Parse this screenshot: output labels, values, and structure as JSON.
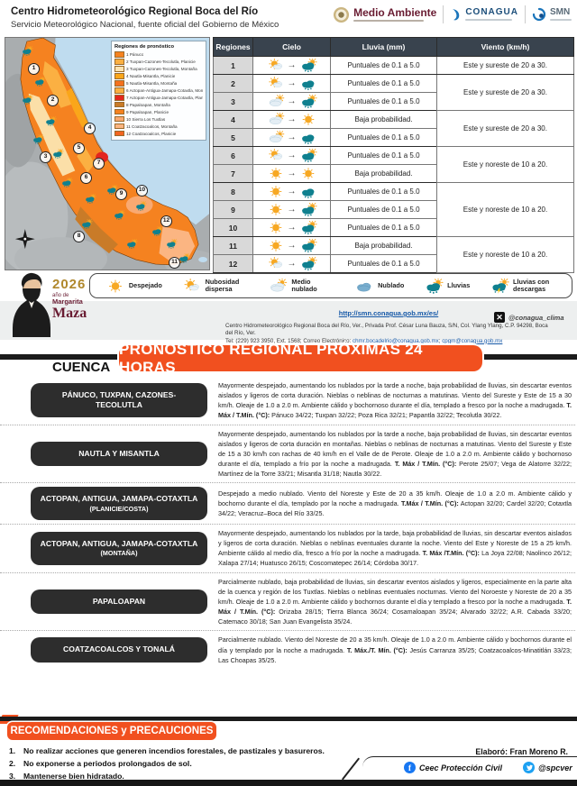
{
  "header": {
    "title": "Centro Hidrometeorológico Regional Boca del Río",
    "subtitle": "Servicio Meteorológico Nacional, fuente oficial del Gobierno de México",
    "logos": {
      "medio_ambiente": "Medio Ambiente",
      "conagua": "CONAGUA",
      "smn": "SMN"
    }
  },
  "map": {
    "legend_title": "Regiones de pronóstico",
    "legend_items": [
      {
        "label": "1 Pánuco",
        "color": "#F58220"
      },
      {
        "label": "2 Tuxpan-Cazones-Tecolutla, Planicie",
        "color": "#FBB042"
      },
      {
        "label": "3 Tuxpan-Cazones-Tecolutla, Montaña",
        "color": "#FDE3B0"
      },
      {
        "label": "4 Nautla-Misantla, Planicie",
        "color": "#FAA61A"
      },
      {
        "label": "5 Nautla-Misantla, Montaña",
        "color": "#F4711F"
      },
      {
        "label": "6 Actopan-Antigua-Jamapa-Cotaxtla, Montaña",
        "color": "#FBB042"
      },
      {
        "label": "7 Actopan-Antigua-Jamapa-Cotaxtla, Planicie",
        "color": "#E3261F"
      },
      {
        "label": "8 Papaloapan, Montaña",
        "color": "#C97B28"
      },
      {
        "label": "9 Papaloapan, Planicie",
        "color": "#F58220"
      },
      {
        "label": "10 Sierra Los Tuxtlas",
        "color": "#F9A971"
      },
      {
        "label": "11 Coatzacoalcos, Montaña",
        "color": "#FBB582"
      },
      {
        "label": "12 Coatzacoalcos, Planicie",
        "color": "#F26522"
      }
    ]
  },
  "forecast_table": {
    "headers": [
      "Regiones",
      "Cielo",
      "Lluvia (mm)",
      "Viento (km/h)"
    ],
    "rows": [
      {
        "region": "1",
        "sky_from": "sun-cloud",
        "sky_to": "rain-sun",
        "rain": "Puntuales de 0.1 a 5.0"
      },
      {
        "region": "2",
        "sky_from": "sun-cloud",
        "sky_to": "rain",
        "rain": "Puntuales de 0.1 a 5.0"
      },
      {
        "region": "3",
        "sky_from": "cloud",
        "sky_to": "rain-sun",
        "rain": "Puntuales de 0.1 a 5.0"
      },
      {
        "region": "4",
        "sky_from": "cloud",
        "sky_to": "sun",
        "rain": "Baja probabilidad."
      },
      {
        "region": "5",
        "sky_from": "cloud",
        "sky_to": "rain",
        "rain": "Puntuales de 0.1 a 5.0"
      },
      {
        "region": "6",
        "sky_from": "sun-cloud",
        "sky_to": "rain-sun",
        "rain": "Puntuales de 0.1 a 5.0"
      },
      {
        "region": "7",
        "sky_from": "sun",
        "sky_to": "sun",
        "rain": "Baja probabilidad."
      },
      {
        "region": "8",
        "sky_from": "sun",
        "sky_to": "rain",
        "rain": "Puntuales de 0.1 a 5.0"
      },
      {
        "region": "9",
        "sky_from": "sun",
        "sky_to": "rain-sun",
        "rain": "Puntuales de 0.1 a 5.0"
      },
      {
        "region": "10",
        "sky_from": "sun",
        "sky_to": "rain-sun",
        "rain": "Puntuales de 0.1 a 5.0"
      },
      {
        "region": "11",
        "sky_from": "sun",
        "sky_to": "rain-sun",
        "rain": "Baja probabilidad."
      },
      {
        "region": "12",
        "sky_from": "sun-cloud",
        "sky_to": "rain-sun",
        "rain": "Puntuales de 0.1 a 5.0"
      }
    ],
    "wind_groups": [
      {
        "start": 0,
        "span": 1,
        "text": "Este y sureste de 20 a 30."
      },
      {
        "start": 1,
        "span": 2,
        "text": "Este y sureste de 20 a 30."
      },
      {
        "start": 3,
        "span": 2,
        "text": "Este y sureste de 20 a 30."
      },
      {
        "start": 5,
        "span": 2,
        "text": "Este y noreste de 10 a 20."
      },
      {
        "start": 7,
        "span": 3,
        "text": "Este y noreste de 10 a 20."
      },
      {
        "start": 10,
        "span": 2,
        "text": "Este y noreste de 10 a 20."
      }
    ]
  },
  "weather_legend": [
    {
      "icon": "sun",
      "label": "Despejado"
    },
    {
      "icon": "sun-cloud",
      "label": "Nubosidad dispersa"
    },
    {
      "icon": "cloud",
      "label": "Medio nublado"
    },
    {
      "icon": "cloud-solid",
      "label": "Nublado"
    },
    {
      "icon": "rain-sun",
      "label": "Lluvias"
    },
    {
      "icon": "storm",
      "label": "Lluvias con descargas"
    }
  ],
  "contact": {
    "year_logo": {
      "year": "2026",
      "line1": "año de",
      "line2": "Margarita",
      "line3": "Maza"
    },
    "url": "http://smn.conagua.gob.mx/es/",
    "address": "Centro Hidrometeorológico Regional Boca del Río, Ver., Privada Prof. César Luna Bauza, S/N, Col. Ylang Ylang, C.P. 94298, Boca del Río, Ver.",
    "phone_prefix": "Tel: (229) 923 3950, Ext. 1568; Correo Electrónico: ",
    "email1": "chmr.bocadelrio@conagua.gob.mx",
    "separator": "; ",
    "email2": "cpgm@conagua.gob.mx",
    "x_handle": "@conagua_clima"
  },
  "regional": {
    "banner": "PRONÓSTICO REGIONAL PRÓXIMAS 24 HORAS",
    "cuenca": "CUENCA",
    "sections": [
      {
        "label": "PÁNUCO, TUXPAN, CAZONES-TECOLUTLA",
        "sub": "",
        "body": "Mayormente despejado, aumentando los nublados por la tarde a noche, baja probabilidad de lluvias, sin descartar eventos aislados y ligeros de corta duración. Nieblas o neblinas de nocturnas a matutinas. Viento del Sureste y Este de 15 a 30 km/h. Oleaje de 1.0 a 2.0 m. Ambiente cálido y bochornoso durante el día, templado a fresco por la noche a madrugada. ",
        "temps_label": "T. Máx / T.Mín. (°C):",
        "temps": " Pánuco 34/22; Tuxpan 32/22; Poza Rica 32/21; Papantla 32/22; Tecolutla 30/22."
      },
      {
        "label": "NAUTLA Y MISANTLA",
        "sub": "",
        "body": "Mayormente despejado, aumentando los nublados por la tarde a noche, baja probabilidad de lluvias, sin descartar eventos aislados y ligeros de corta duración en montañas. Nieblas o neblinas de nocturnas a matutinas. Viento del Sureste y Este de 15 a 30 km/h con rachas de 40 km/h en el Valle de de Perote. Oleaje de 1.0 a 2.0 m. Ambiente cálido y bochornoso durante el día, templado a frío por la noche a madrugada. ",
        "temps_label": "T. Máx / T.Mín. (°C):",
        "temps": " Perote 25/07; Vega de Alatorre 32/22; Martínez de la Torre 33/21; Misantla 31/18; Nautla 30/22."
      },
      {
        "label": "ACTOPAN, ANTIGUA, JAMAPA-COTAXTLA",
        "sub": "(PLANICIE/COSTA)",
        "body": "Despejado a medio nublado. Viento del Noreste y Este de 20 a 35 km/h. Oleaje de 1.0 a 2.0 m. Ambiente cálido y bochorno durante el día, templado por la noche a madrugada. ",
        "temps_label": "T.Máx / T.Mín. (°C):",
        "temps": " Actopan 32/20; Cardel 32/20; Cotaxtla 34/22; Veracruz–Boca del Río 33/25."
      },
      {
        "label": "ACTOPAN, ANTIGUA, JAMAPA-COTAXTLA",
        "sub": "(MONTAÑA)",
        "body": "Mayormente despejado, aumentando los nublados por la tarde, baja probabilidad de lluvias, sin descartar eventos aislados y ligeros de corta duración. Nieblas o neblinas eventuales durante la noche. Viento del Este y Noreste de 15 a 25 km/h. Ambiente cálido al medio día, fresco a frío por la noche a madrugada. ",
        "temps_label": "T. Máx /T.Mín. (°C):",
        "temps": " La Joya 22/08; Naolinco 26/12; Xalapa 27/14; Huatusco 26/15; Coscomatepec 26/14; Córdoba 30/17."
      },
      {
        "label": "PAPALOAPAN",
        "sub": "",
        "body": "Parcialmente nublado, baja probabilidad de lluvias, sin descartar eventos aislados y ligeros, especialmente en la parte alta de la cuenca y región de los Tuxtlas. Nieblas o neblinas eventuales nocturnas. Viento del Noroeste y Noreste de 20 a 35 km/h. Oleaje de 1.0 a 2.0 m. Ambiente cálido y bochornos durante el día y templado a fresco por la noche a madrugada. ",
        "temps_label": "T. Máx / T.Mín. (°C):",
        "temps": " Orizaba 28/15; Tierra Blanca 36/24; Cosamaloapan 35/24; Alvarado 32/22; A.R. Cabada 33/20; Catemaco 30/18; San Juan Evangelista 35/24."
      },
      {
        "label": "COATZACOALCOS Y TONALÁ",
        "sub": "",
        "body": "Parcialmente nublado. Viento del Noreste de 20 a 35 km/h. Oleaje de 1.0 a 2.0 m. Ambiente cálido y bochornos durante el día y templado por la noche a madrugada. ",
        "temps_label": "T. Máx./T. Mín. (°C):",
        "temps": " Jesús Carranza 35/25; Coatzacoalcos-Minatitlán 33/23; Las Choapas 35/25."
      }
    ]
  },
  "recommendations": {
    "banner": "RECOMENDACIONES y PRECAUCIONES",
    "items": [
      "No realizar acciones que generen incendios forestales, de pastizales y basureros.",
      "No exponerse a periodos prolongados  de sol.",
      "Mantenerse bien hidratado."
    ],
    "author": "Elaboró: Fran Moreno R."
  },
  "footer": {
    "facebook": "Ceec Protección Civil",
    "twitter": "@spcver"
  },
  "colors": {
    "banner_orange": "#F1501F",
    "table_header": "#39434E",
    "rain_teal": "#0F808F",
    "sun": "#F7A823"
  }
}
